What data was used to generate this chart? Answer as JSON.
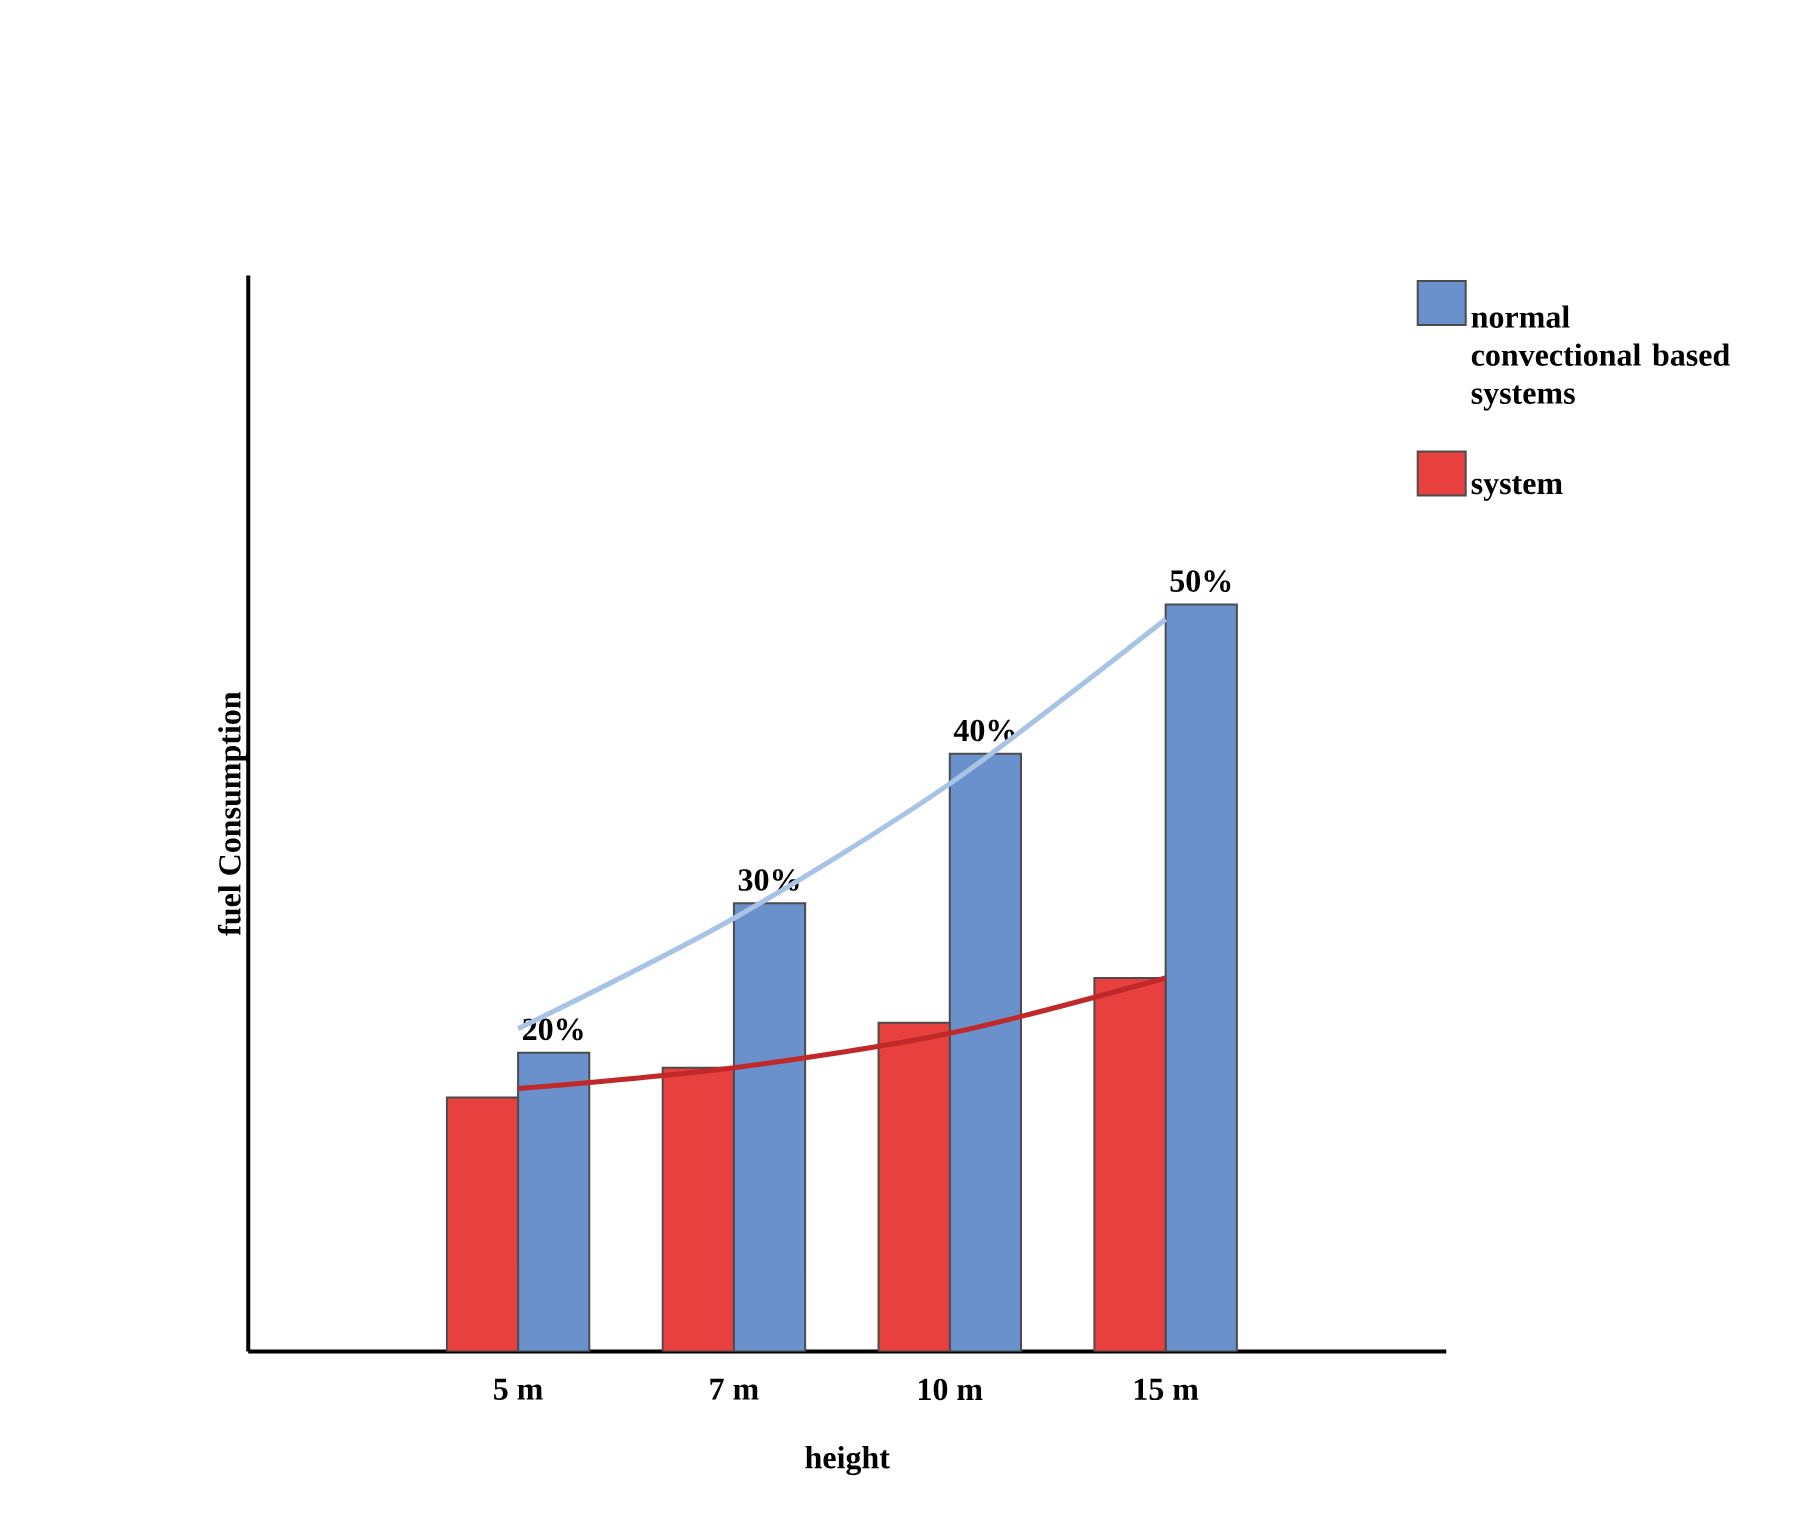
{
  "chart_data": {
    "type": "bar",
    "xlabel": "height",
    "ylabel": "fuel Consumption",
    "categories": [
      "5 m",
      "7 m",
      "10 m",
      "15 m"
    ],
    "ylim": [
      0,
      72
    ],
    "tick_labels": "x",
    "legend": "right",
    "series": [
      {
        "name": "normal convectional based systems",
        "color": "#6a91cb",
        "values": [
          20,
          30,
          40,
          50
        ],
        "value_labels": [
          "20%",
          "30%",
          "40%",
          "50%"
        ]
      },
      {
        "name": "system",
        "color": "#e8403f",
        "values": [
          17,
          19,
          22,
          25
        ]
      },
      {
        "type": "line",
        "color": "#a8c3e6",
        "values": [
          21.6,
          29,
          38,
          49
        ]
      },
      {
        "type": "line",
        "color": "#c0282a",
        "values": [
          17.6,
          19,
          21.3,
          25
        ]
      }
    ]
  }
}
